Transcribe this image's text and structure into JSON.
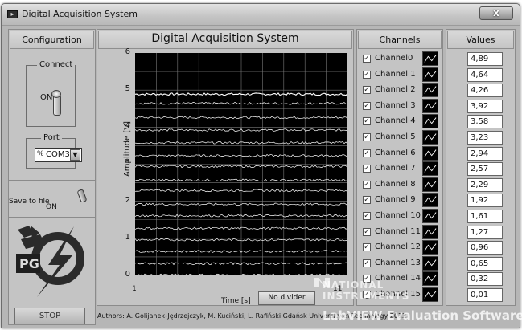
{
  "window": {
    "title": "Digital Acquisition System",
    "close_glyph": "x"
  },
  "left": {
    "header": "Configuration",
    "connect": {
      "label": "Connect",
      "state": "ON"
    },
    "port": {
      "label": "Port",
      "icon": "%",
      "value": "COM3"
    },
    "save": {
      "label": "Save to file",
      "state": "ON"
    },
    "logo_text": "PG",
    "stop_label": "STOP"
  },
  "graph": {
    "title": "Digital Acquisition System",
    "divider_label": "No divider"
  },
  "chart_data": {
    "type": "line",
    "title": "Digital Acquisition System",
    "xlabel": "Time [s]",
    "ylabel": "Amplitude [V]",
    "xlim": [
      1,
      11
    ],
    "ylim": [
      0,
      6
    ],
    "x_ticks": [
      "1",
      "11"
    ],
    "y_ticks": [
      "0",
      "1",
      "2",
      "3",
      "4",
      "5",
      "6"
    ],
    "grid": true,
    "series": [
      {
        "name": "Channel0",
        "level": 4.89
      },
      {
        "name": "Channel 1",
        "level": 4.64
      },
      {
        "name": "Channel 2",
        "level": 4.26
      },
      {
        "name": "Channel 3",
        "level": 3.92
      },
      {
        "name": "Channel 4",
        "level": 3.58
      },
      {
        "name": "Channel 5",
        "level": 3.23
      },
      {
        "name": "Channel 6",
        "level": 2.94
      },
      {
        "name": "Channel 7",
        "level": 2.57
      },
      {
        "name": "Channel 8",
        "level": 2.29
      },
      {
        "name": "Channel 9",
        "level": 1.92
      },
      {
        "name": "Channel 10",
        "level": 1.61
      },
      {
        "name": "Channel 11",
        "level": 1.27
      },
      {
        "name": "Channel 12",
        "level": 0.96
      },
      {
        "name": "Channel 13",
        "level": 0.65
      },
      {
        "name": "Channel 14",
        "level": 0.32
      },
      {
        "name": "Channel 15",
        "level": 0.01
      }
    ]
  },
  "channels": {
    "header": "Channels",
    "check_glyph": "✓",
    "items": [
      "Channel0",
      "Channel 1",
      "Channel 2",
      "Channel 3",
      "Channel 4",
      "Channel 5",
      "Channel 6",
      "Channel 7",
      "Channel 8",
      "Channel 9",
      "Channel 10",
      "Channel 11",
      "Channel 12",
      "Channel 13",
      "Channel 14",
      "Channel 15"
    ]
  },
  "values": {
    "header": "Values",
    "items": [
      "4,89",
      "4,64",
      "4,26",
      "3,92",
      "3,58",
      "3,23",
      "2,94",
      "2,57",
      "2,29",
      "1,92",
      "1,61",
      "1,27",
      "0,96",
      "0,65",
      "0,32",
      "0,01"
    ]
  },
  "footer": {
    "authors": "Authors: A. Golijanek-Jędrzejczyk, M. Kuciński, L. Rafiński   Gdańsk University of Technology 2012"
  },
  "watermark": {
    "line1": "NATIONAL",
    "line2": "INSTRUMENTS",
    "line3": "LabVIEW Evaluation Software"
  },
  "colors": {
    "trace": "#ffffff",
    "grid": "#7a7a7a",
    "plot_bg": "#000000",
    "panel": "#c4c4c4"
  }
}
